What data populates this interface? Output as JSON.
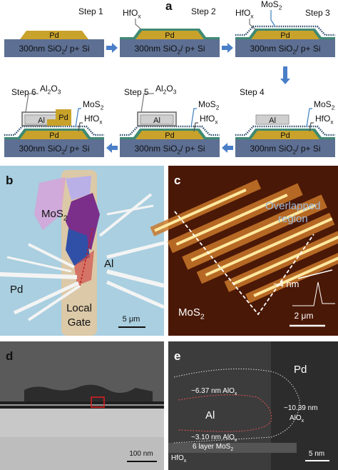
{
  "panel_a": {
    "label": "a",
    "steps": [
      "Step 1",
      "Step 2",
      "Step 3",
      "Step 4",
      "Step 5",
      "Step 6"
    ],
    "substrate": [
      {
        "t": "300nm SiO"
      },
      {
        "t": "2",
        "sub": true
      },
      {
        "t": "/ p+ Si"
      }
    ],
    "pd": "Pd",
    "al": "Al",
    "hfo": [
      {
        "t": "HfO"
      },
      {
        "t": "x",
        "sub": true
      }
    ],
    "mos2": [
      {
        "t": "MoS"
      },
      {
        "t": "2",
        "sub": true
      }
    ],
    "al2o3": [
      {
        "t": "Al"
      },
      {
        "t": "2",
        "sub": true
      },
      {
        "t": "O"
      },
      {
        "t": "3",
        "sub": true
      }
    ]
  },
  "panel_b": {
    "label": "b",
    "mos2": [
      {
        "t": "MoS"
      },
      {
        "t": "2",
        "sub": true
      }
    ],
    "al": "Al",
    "pd": "Pd",
    "gate": [
      "Local",
      "Gate"
    ],
    "scale": "5 μm"
  },
  "panel_c": {
    "label": "c",
    "region": [
      "Overlapped",
      "region"
    ],
    "height": "~4 nm",
    "mos2": [
      {
        "t": "MoS"
      },
      {
        "t": "2",
        "sub": true
      }
    ],
    "scale": "2 μm"
  },
  "panel_d": {
    "label": "d",
    "scale": "100 nm"
  },
  "panel_e": {
    "label": "e",
    "pd": "Pd",
    "top": [
      {
        "t": "~6.37 nm AlO"
      },
      {
        "t": "x",
        "sub": true
      }
    ],
    "al": "Al",
    "side_1": "~10.39 nm",
    "side_2": [
      {
        "t": "AlO"
      },
      {
        "t": "x",
        "sub": true
      }
    ],
    "bottom": [
      {
        "t": "~3.10 nm AlO"
      },
      {
        "t": "x",
        "sub": true
      }
    ],
    "mos2": [
      {
        "t": "6 layer MoS"
      },
      {
        "t": "2",
        "sub": true
      }
    ],
    "hfo": [
      {
        "t": "HfO"
      },
      {
        "t": "x",
        "sub": true
      }
    ],
    "scale": "5 nm"
  }
}
